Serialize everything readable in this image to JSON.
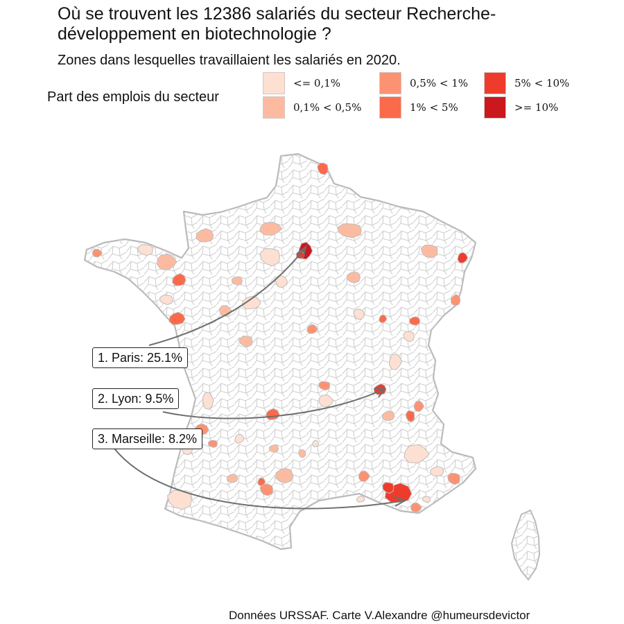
{
  "title": "Où se trouvent les 12386 salariés du secteur Recherche-développement en biotechnologie ?",
  "subtitle": "Zones dans lesquelles travaillaient les salariés en 2020.",
  "legend": {
    "title": "Part des emplois du secteur",
    "items": [
      {
        "label": "<= 0,1%",
        "color": "#fee0d2"
      },
      {
        "label": "0,1% < 0,5%",
        "color": "#fcbba1"
      },
      {
        "label": "0,5% < 1%",
        "color": "#fc9272"
      },
      {
        "label": "1% < 5%",
        "color": "#fb6a4a"
      },
      {
        "label": "5% < 10%",
        "color": "#ef3b2c"
      },
      {
        "label": ">= 10%",
        "color": "#cb181d"
      }
    ]
  },
  "callouts": [
    {
      "label": "1. Paris: 25.1%",
      "city": "Paris",
      "share": 25.1
    },
    {
      "label": "2. Lyon: 9.5%",
      "city": "Lyon",
      "share": 9.5
    },
    {
      "label": "3. Marseille: 8.2%",
      "city": "Marseille",
      "share": 8.2
    }
  ],
  "caption": "Données URSSAF. Carte V.Alexandre @humeursdevictor",
  "colors": {
    "border": "#c8c8c8",
    "land": "#ffffff",
    "arrow": "#6e6e6e"
  }
}
